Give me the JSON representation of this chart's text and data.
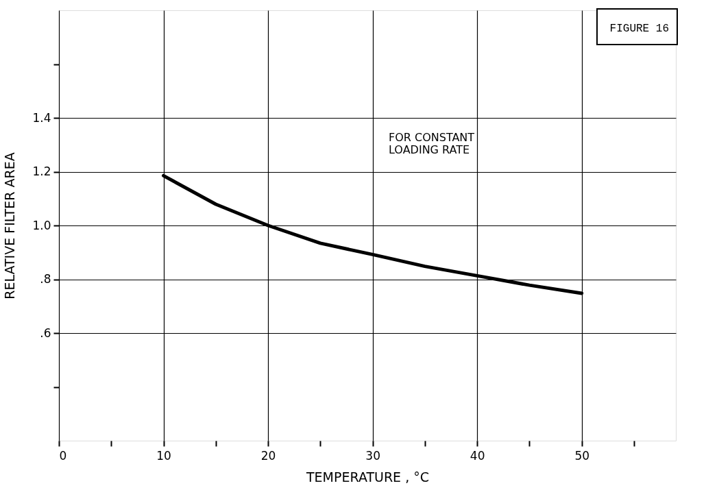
{
  "chart_data": {
    "type": "line",
    "xlabel": "TEMPERATURE , °C",
    "ylabel": "RELATIVE FILTER AREA",
    "annotations": [
      "FIGURE 16",
      "FOR CONSTANT\nLOADING RATE"
    ],
    "x": [
      10,
      15,
      20,
      25,
      30,
      35,
      40,
      45,
      50
    ],
    "series": [
      {
        "color": "#000000",
        "values": [
          1.185,
          1.079,
          1.0,
          0.934,
          0.892,
          0.848,
          0.813,
          0.778,
          0.748
        ]
      }
    ],
    "xlim": [
      0,
      59
    ],
    "xticks": [
      0,
      {
        "value": 5,
        "label": null
      },
      10,
      {
        "value": 15,
        "label": null
      },
      20,
      {
        "value": 25,
        "label": null
      },
      30,
      {
        "value": 35,
        "label": null
      },
      40,
      {
        "value": 45,
        "label": null
      },
      50,
      {
        "value": 55,
        "label": null
      }
    ],
    "ylim": [
      0.2,
      1.8
    ],
    "yticks": [
      {
        "value": 0.4,
        "label": null
      },
      {
        "value": 0.6,
        "label": ".6"
      },
      {
        "value": 0.8,
        "label": ".8"
      },
      {
        "value": 1.0,
        "label": "1.0"
      },
      1.2,
      1.4,
      {
        "value": 1.6,
        "label": null
      }
    ],
    "grid": true,
    "legend": false,
    "marker": "none",
    "line_style": "solid"
  }
}
